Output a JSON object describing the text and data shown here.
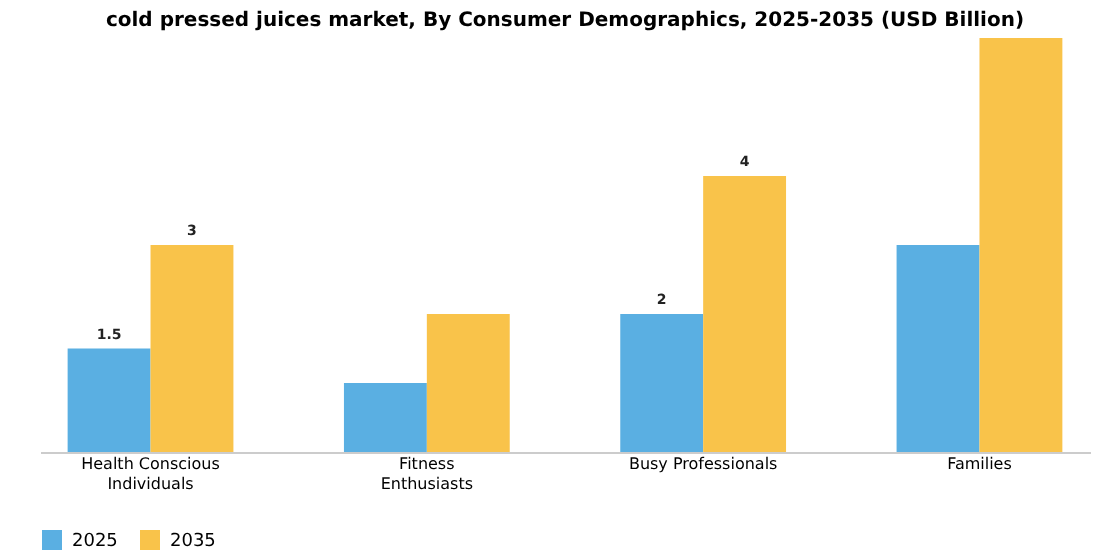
{
  "chart_data": {
    "type": "bar",
    "title": "cold pressed juices market, By Consumer Demographics, 2025-2035 (USD Billion)",
    "categories": [
      "Health Conscious Individuals",
      "Fitness Enthusiasts",
      "Busy Professionals",
      "Families"
    ],
    "series": [
      {
        "name": "2025",
        "color": "#5aafe2",
        "values": [
          1.5,
          1.0,
          2.0,
          3.0
        ],
        "value_labels": [
          "1.5",
          null,
          "2",
          null
        ]
      },
      {
        "name": "2035",
        "color": "#f9c34a",
        "values": [
          3.0,
          2.0,
          4.0,
          6.0
        ],
        "value_labels": [
          "3",
          null,
          "4",
          null
        ]
      }
    ],
    "legend": "bottom",
    "grid": false
  }
}
